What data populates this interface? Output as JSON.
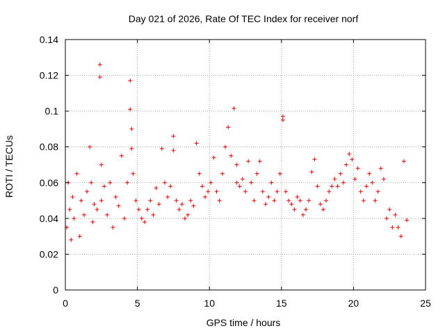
{
  "chart_data": {
    "type": "scatter",
    "title": "Day 021 of 2026, Rate Of TEC Index for receiver norf",
    "xlabel": "GPS time / hours",
    "ylabel": "ROTI / TECUs",
    "xlim": [
      0,
      25
    ],
    "ylim": [
      0,
      0.14
    ],
    "xticks": [
      0,
      5,
      10,
      15,
      20,
      25
    ],
    "xtick_labels": [
      "0",
      "5",
      "10",
      "15",
      "20",
      "25"
    ],
    "yticks": [
      0,
      0.02,
      0.04,
      0.06,
      0.08,
      0.1,
      0.12,
      0.14
    ],
    "ytick_labels": [
      "0",
      "0.02",
      "0.04",
      "0.06",
      "0.08",
      "0.1",
      "0.12",
      "0.14"
    ],
    "grid": true,
    "marker": "+",
    "color": "#e00000",
    "series": [
      {
        "name": "ROTI",
        "x": [
          0.1,
          0.2,
          0.3,
          0.4,
          0.5,
          0.6,
          0.8,
          1.0,
          1.1,
          1.3,
          1.5,
          1.7,
          1.8,
          1.9,
          2.0,
          2.2,
          2.4,
          2.4,
          2.5,
          2.5,
          2.7,
          2.9,
          3.1,
          3.3,
          3.5,
          3.7,
          3.9,
          4.1,
          4.3,
          4.5,
          4.5,
          4.6,
          4.6,
          4.7,
          4.9,
          5.1,
          5.3,
          5.5,
          5.7,
          5.9,
          6.1,
          6.3,
          6.5,
          6.7,
          6.9,
          7.1,
          7.3,
          7.5,
          7.5,
          7.7,
          7.9,
          8.1,
          8.3,
          8.5,
          8.7,
          8.9,
          9.1,
          9.3,
          9.5,
          9.7,
          9.9,
          10.1,
          10.3,
          10.5,
          10.7,
          10.9,
          11.1,
          11.3,
          11.5,
          11.7,
          11.9,
          11.9,
          12.1,
          12.3,
          12.5,
          12.7,
          12.9,
          13.1,
          13.3,
          13.5,
          13.7,
          13.9,
          14.1,
          14.3,
          14.5,
          14.7,
          14.9,
          15.1,
          15.1,
          15.3,
          15.5,
          15.7,
          15.9,
          16.1,
          16.3,
          16.5,
          16.7,
          16.9,
          17.1,
          17.3,
          17.5,
          17.7,
          17.9,
          18.1,
          18.3,
          18.5,
          18.7,
          18.9,
          19.1,
          19.3,
          19.5,
          19.7,
          19.9,
          20.1,
          20.3,
          20.5,
          20.7,
          20.9,
          21.1,
          21.3,
          21.5,
          21.7,
          21.9,
          22.1,
          22.3,
          22.5,
          22.7,
          22.9,
          23.1,
          23.3,
          23.5,
          23.7
        ],
        "y": [
          0.035,
          0.06,
          0.045,
          0.028,
          0.052,
          0.04,
          0.065,
          0.03,
          0.05,
          0.042,
          0.055,
          0.08,
          0.06,
          0.038,
          0.048,
          0.045,
          0.126,
          0.119,
          0.07,
          0.05,
          0.058,
          0.042,
          0.06,
          0.035,
          0.052,
          0.047,
          0.075,
          0.04,
          0.06,
          0.117,
          0.101,
          0.079,
          0.09,
          0.065,
          0.05,
          0.045,
          0.04,
          0.038,
          0.045,
          0.05,
          0.042,
          0.057,
          0.048,
          0.079,
          0.06,
          0.052,
          0.058,
          0.086,
          0.078,
          0.05,
          0.045,
          0.048,
          0.04,
          0.042,
          0.05,
          0.047,
          0.082,
          0.065,
          0.058,
          0.052,
          0.055,
          0.06,
          0.074,
          0.055,
          0.05,
          0.065,
          0.08,
          0.091,
          0.075,
          0.1015,
          0.07,
          0.06,
          0.058,
          0.062,
          0.055,
          0.072,
          0.06,
          0.05,
          0.065,
          0.072,
          0.055,
          0.048,
          0.052,
          0.06,
          0.05,
          0.055,
          0.065,
          0.097,
          0.095,
          0.055,
          0.05,
          0.048,
          0.045,
          0.052,
          0.05,
          0.042,
          0.045,
          0.05,
          0.066,
          0.073,
          0.058,
          0.048,
          0.045,
          0.05,
          0.055,
          0.058,
          0.062,
          0.058,
          0.065,
          0.06,
          0.07,
          0.076,
          0.073,
          0.062,
          0.068,
          0.055,
          0.05,
          0.058,
          0.065,
          0.06,
          0.05,
          0.055,
          0.068,
          0.062,
          0.04,
          0.045,
          0.035,
          0.042,
          0.035,
          0.03,
          0.072,
          0.039
        ]
      }
    ]
  }
}
